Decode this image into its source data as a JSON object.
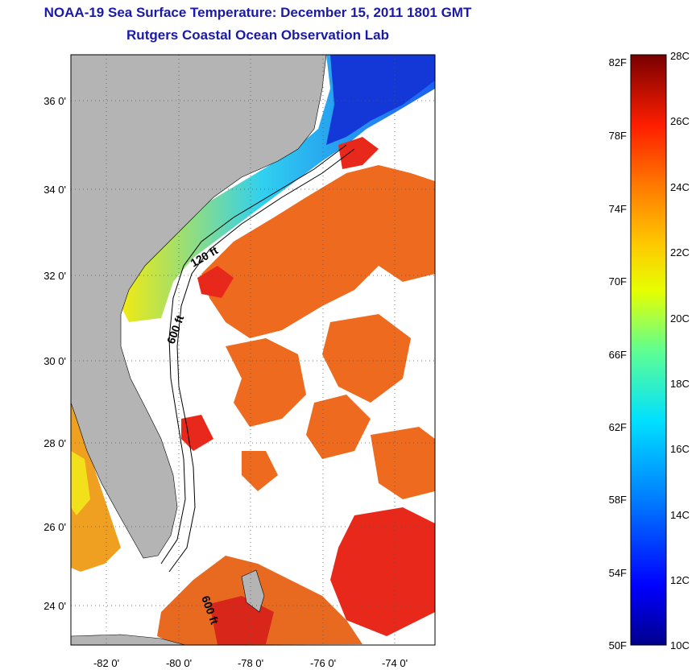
{
  "title": "NOAA-19 Sea Surface Temperature:  December 15, 2011 1801 GMT",
  "subtitle": "Rutgers Coastal Ocean Observation Lab",
  "map": {
    "lat_ticks": [
      "36 0'",
      "34 0'",
      "32 0'",
      "30 0'",
      "28 0'",
      "26 0'",
      "24 0'"
    ],
    "lon_ticks": [
      "-82 0'",
      "-80 0'",
      "-78 0'",
      "-76 0'",
      "-74 0'"
    ],
    "isobath_labels": [
      "120 ft",
      "600 ft",
      "600 ft"
    ]
  },
  "colorbar": {
    "fahrenheit": [
      "82F",
      "78F",
      "74F",
      "70F",
      "66F",
      "62F",
      "58F",
      "54F",
      "50F"
    ],
    "celsius": [
      "28C",
      "26C",
      "24C",
      "22C",
      "20C",
      "18C",
      "16C",
      "14C",
      "12C",
      "10C"
    ]
  },
  "colors": {
    "title": "#1a1aa6",
    "land": "#b4b4b4",
    "warm_water": "#e8641e",
    "cold_water": "#1040d0"
  }
}
